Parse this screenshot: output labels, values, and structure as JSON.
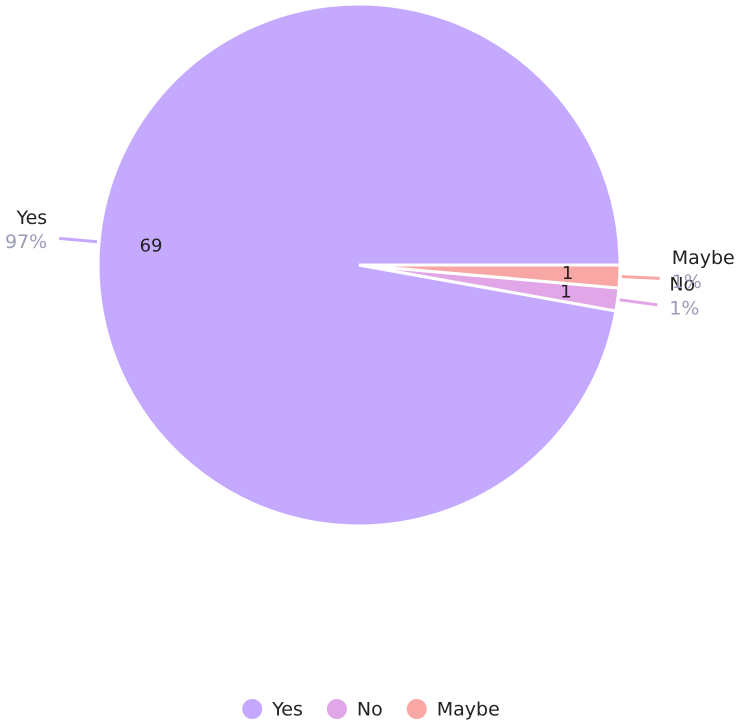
{
  "chart_data": {
    "type": "pie",
    "categories": [
      "Yes",
      "No",
      "Maybe"
    ],
    "values": [
      69,
      1,
      1
    ],
    "percent_labels": [
      "97%",
      "1%",
      "1%"
    ],
    "colors": [
      "#c4a9ff",
      "#e1a6e8",
      "#f8a7a4"
    ],
    "legend": "bottom"
  }
}
